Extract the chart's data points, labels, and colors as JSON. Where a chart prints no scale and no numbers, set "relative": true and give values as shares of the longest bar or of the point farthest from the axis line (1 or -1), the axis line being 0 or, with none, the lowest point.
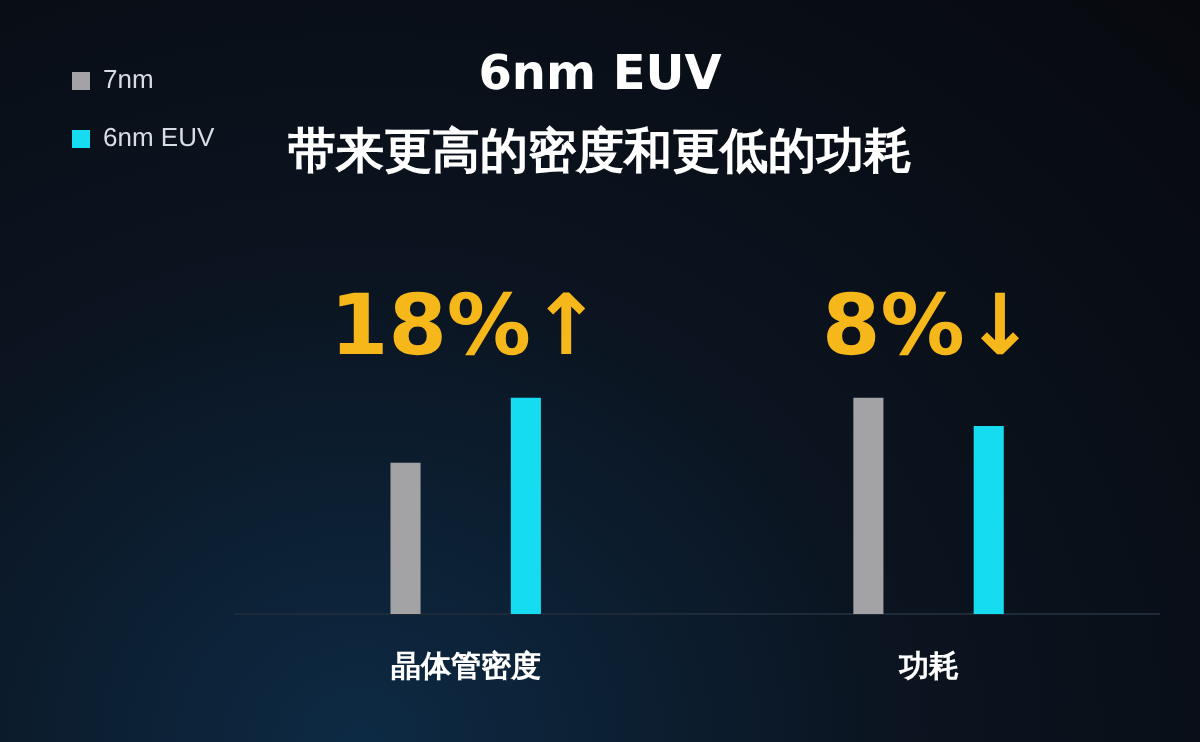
{
  "chart_data": {
    "type": "bar",
    "title": "6nm EUV",
    "subtitle": "带来更高的密度和更低的功耗",
    "categories": [
      "晶体管密度",
      "功耗"
    ],
    "series": [
      {
        "name": "7nm",
        "color": "#a3a3a6",
        "values": [
          0.7,
          1
        ]
      },
      {
        "name": "6nm EUV",
        "color": "#16dcf2",
        "values": [
          1,
          0.87
        ]
      }
    ],
    "relative": true,
    "legend": "top left",
    "grid": false,
    "annotations": [
      "18%↑",
      "8%↓"
    ]
  }
}
